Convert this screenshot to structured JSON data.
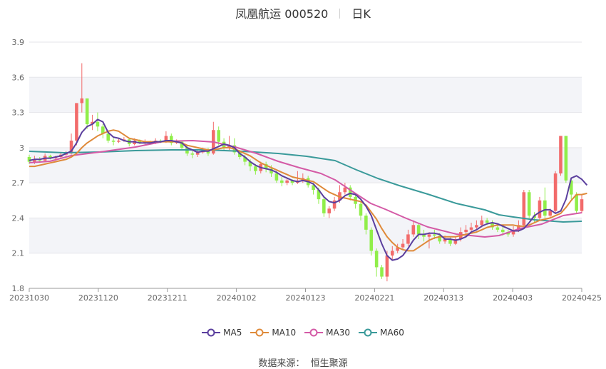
{
  "header": {
    "title": "凤凰航运 000520",
    "period": "日K"
  },
  "source": {
    "label": "数据来源：",
    "value": "恒生聚源"
  },
  "chart_data": {
    "type": "candlestick",
    "ylim": [
      1.8,
      3.9
    ],
    "yticks": [
      1.8,
      2.1,
      2.4,
      2.7,
      3,
      3.3,
      3.6,
      3.9
    ],
    "xticks": [
      "20231030",
      "20231120",
      "20231211",
      "20240102",
      "20240123",
      "20240221",
      "20240313",
      "20240403",
      "20240425"
    ],
    "up_color": "#f26b6b",
    "down_color": "#90ee4a",
    "grid_band_color": "#f3f4f8",
    "series": [
      {
        "name": "MA5",
        "color": "#5b3f9e"
      },
      {
        "name": "MA10",
        "color": "#df8a3a"
      },
      {
        "name": "MA30",
        "color": "#d45aa6"
      },
      {
        "name": "MA60",
        "color": "#3a9a9a"
      }
    ],
    "candles": [
      [
        2.92,
        2.88,
        2.94,
        2.86
      ],
      [
        2.88,
        2.9,
        2.93,
        2.86
      ],
      [
        2.9,
        2.89,
        2.92,
        2.87
      ],
      [
        2.89,
        2.93,
        2.95,
        2.88
      ],
      [
        2.93,
        2.91,
        2.94,
        2.9
      ],
      [
        2.91,
        2.92,
        2.93,
        2.89
      ],
      [
        2.92,
        2.94,
        2.96,
        2.91
      ],
      [
        2.94,
        2.95,
        2.97,
        2.93
      ],
      [
        2.95,
        3.06,
        3.12,
        2.94
      ],
      [
        3.06,
        3.38,
        3.38,
        3.02
      ],
      [
        3.38,
        3.42,
        3.72,
        3.3
      ],
      [
        3.42,
        3.2,
        3.3,
        3.16
      ],
      [
        3.2,
        3.22,
        3.28,
        3.15
      ],
      [
        3.22,
        3.18,
        3.3,
        3.14
      ],
      [
        3.18,
        3.12,
        3.2,
        3.08
      ],
      [
        3.12,
        3.06,
        3.14,
        3.04
      ],
      [
        3.06,
        3.05,
        3.08,
        3.02
      ],
      [
        3.05,
        3.06,
        3.08,
        3.04
      ],
      [
        3.06,
        3.07,
        3.09,
        3.05
      ],
      [
        3.07,
        3.03,
        3.08,
        3.01
      ],
      [
        3.03,
        3.06,
        3.08,
        3.02
      ],
      [
        3.06,
        3.04,
        3.07,
        3.03
      ],
      [
        3.04,
        3.05,
        3.07,
        3.02
      ],
      [
        3.05,
        3.04,
        3.06,
        3.03
      ],
      [
        3.04,
        3.06,
        3.08,
        3.03
      ],
      [
        3.06,
        3.05,
        3.07,
        3.04
      ],
      [
        3.05,
        3.1,
        3.14,
        3.04
      ],
      [
        3.1,
        3.04,
        3.12,
        3.02
      ],
      [
        3.04,
        3.05,
        3.07,
        3.03
      ],
      [
        3.05,
        3.0,
        3.06,
        2.98
      ],
      [
        3.0,
        2.95,
        3.02,
        2.93
      ],
      [
        2.95,
        2.94,
        2.97,
        2.91
      ],
      [
        2.94,
        2.96,
        2.98,
        2.92
      ],
      [
        2.96,
        2.98,
        3.0,
        2.95
      ],
      [
        2.98,
        2.95,
        3.0,
        2.93
      ],
      [
        2.95,
        3.15,
        3.22,
        2.94
      ],
      [
        3.15,
        3.05,
        3.18,
        3.02
      ],
      [
        3.05,
        3.0,
        3.08,
        2.98
      ],
      [
        3.0,
        3.02,
        3.1,
        2.98
      ],
      [
        3.02,
        2.96,
        3.08,
        2.94
      ],
      [
        2.96,
        2.92,
        2.98,
        2.9
      ],
      [
        2.92,
        2.88,
        2.94,
        2.85
      ],
      [
        2.88,
        2.84,
        2.9,
        2.8
      ],
      [
        2.84,
        2.8,
        2.86,
        2.77
      ],
      [
        2.8,
        2.86,
        2.88,
        2.78
      ],
      [
        2.86,
        2.82,
        2.88,
        2.79
      ],
      [
        2.82,
        2.78,
        2.85,
        2.75
      ],
      [
        2.78,
        2.72,
        2.8,
        2.7
      ],
      [
        2.72,
        2.7,
        2.75,
        2.67
      ],
      [
        2.7,
        2.72,
        2.74,
        2.68
      ],
      [
        2.72,
        2.7,
        2.73,
        2.68
      ],
      [
        2.7,
        2.72,
        2.8,
        2.69
      ],
      [
        2.72,
        2.74,
        2.78,
        2.7
      ],
      [
        2.74,
        2.68,
        2.76,
        2.66
      ],
      [
        2.68,
        2.64,
        2.7,
        2.6
      ],
      [
        2.64,
        2.56,
        2.66,
        2.52
      ],
      [
        2.56,
        2.44,
        2.58,
        2.41
      ],
      [
        2.44,
        2.48,
        2.5,
        2.4
      ],
      [
        2.48,
        2.55,
        2.58,
        2.46
      ],
      [
        2.55,
        2.62,
        2.68,
        2.53
      ],
      [
        2.62,
        2.66,
        2.7,
        2.6
      ],
      [
        2.66,
        2.58,
        2.68,
        2.55
      ],
      [
        2.58,
        2.52,
        2.6,
        2.48
      ],
      [
        2.52,
        2.42,
        2.54,
        2.38
      ],
      [
        2.42,
        2.3,
        2.44,
        2.26
      ],
      [
        2.3,
        2.12,
        2.32,
        2.08
      ],
      [
        2.12,
        1.98,
        2.14,
        1.9
      ],
      [
        1.98,
        1.9,
        2.0,
        1.88
      ],
      [
        1.9,
        2.08,
        2.12,
        1.86
      ],
      [
        2.08,
        2.12,
        2.16,
        2.04
      ],
      [
        2.12,
        2.15,
        2.18,
        2.1
      ],
      [
        2.15,
        2.18,
        2.22,
        2.13
      ],
      [
        2.18,
        2.26,
        2.3,
        2.16
      ],
      [
        2.26,
        2.34,
        2.38,
        2.24
      ],
      [
        2.34,
        2.26,
        2.36,
        2.22
      ],
      [
        2.26,
        2.24,
        2.3,
        2.2
      ],
      [
        2.24,
        2.26,
        2.28,
        2.14
      ],
      [
        2.26,
        2.25,
        2.3,
        2.22
      ],
      [
        2.25,
        2.2,
        2.27,
        2.18
      ],
      [
        2.2,
        2.22,
        2.25,
        2.18
      ],
      [
        2.22,
        2.18,
        2.24,
        2.16
      ],
      [
        2.18,
        2.22,
        2.24,
        2.17
      ],
      [
        2.22,
        2.28,
        2.32,
        2.2
      ],
      [
        2.28,
        2.3,
        2.34,
        2.26
      ],
      [
        2.3,
        2.32,
        2.36,
        2.28
      ],
      [
        2.32,
        2.34,
        2.38,
        2.3
      ],
      [
        2.34,
        2.38,
        2.42,
        2.32
      ],
      [
        2.38,
        2.36,
        2.4,
        2.34
      ],
      [
        2.36,
        2.32,
        2.38,
        2.3
      ],
      [
        2.32,
        2.3,
        2.35,
        2.28
      ],
      [
        2.3,
        2.28,
        2.33,
        2.25
      ],
      [
        2.28,
        2.26,
        2.3,
        2.24
      ],
      [
        2.26,
        2.3,
        2.33,
        2.24
      ],
      [
        2.3,
        2.34,
        2.38,
        2.28
      ],
      [
        2.34,
        2.62,
        2.64,
        2.32
      ],
      [
        2.62,
        2.42,
        2.64,
        2.4
      ],
      [
        2.42,
        2.4,
        2.45,
        2.36
      ],
      [
        2.4,
        2.55,
        2.58,
        2.38
      ],
      [
        2.55,
        2.42,
        2.66,
        2.4
      ],
      [
        2.42,
        2.46,
        2.48,
        2.4
      ],
      [
        2.46,
        2.78,
        2.8,
        2.44
      ],
      [
        2.78,
        3.1,
        3.1,
        2.76
      ],
      [
        3.1,
        2.72,
        3.1,
        2.7
      ],
      [
        2.72,
        2.6,
        2.74,
        2.56
      ],
      [
        2.6,
        2.46,
        2.62,
        2.44
      ],
      [
        2.46,
        2.56,
        2.6,
        2.44
      ]
    ],
    "ma5": [
      2.89,
      2.9,
      2.9,
      2.91,
      2.91,
      2.92,
      2.93,
      2.95,
      2.97,
      3.04,
      3.13,
      3.18,
      3.2,
      3.24,
      3.22,
      3.13,
      3.09,
      3.08,
      3.06,
      3.05,
      3.05,
      3.04,
      3.04,
      3.04,
      3.05,
      3.05,
      3.06,
      3.06,
      3.05,
      3.04,
      3.0,
      2.98,
      2.96,
      2.97,
      2.97,
      2.99,
      3.01,
      3.03,
      3.02,
      3.0,
      2.95,
      2.92,
      2.88,
      2.85,
      2.83,
      2.82,
      2.81,
      2.79,
      2.76,
      2.74,
      2.72,
      2.71,
      2.72,
      2.71,
      2.69,
      2.64,
      2.58,
      2.54,
      2.53,
      2.55,
      2.59,
      2.61,
      2.6,
      2.56,
      2.5,
      2.42,
      2.3,
      2.18,
      2.08,
      2.04,
      2.05,
      2.08,
      2.14,
      2.21,
      2.26,
      2.26,
      2.27,
      2.27,
      2.26,
      2.22,
      2.22,
      2.21,
      2.22,
      2.24,
      2.28,
      2.3,
      2.33,
      2.35,
      2.36,
      2.35,
      2.33,
      2.31,
      2.29,
      2.29,
      2.31,
      2.36,
      2.42,
      2.45,
      2.47,
      2.47,
      2.44,
      2.46,
      2.56,
      2.74,
      2.76,
      2.73,
      2.68
    ],
    "ma10": [
      2.84,
      2.84,
      2.85,
      2.86,
      2.87,
      2.88,
      2.89,
      2.9,
      2.92,
      2.95,
      3.0,
      3.04,
      3.07,
      3.1,
      3.12,
      3.14,
      3.15,
      3.14,
      3.11,
      3.08,
      3.07,
      3.06,
      3.05,
      3.05,
      3.05,
      3.05,
      3.05,
      3.05,
      3.05,
      3.04,
      3.02,
      3.01,
      3.0,
      2.99,
      2.98,
      2.98,
      2.99,
      3.0,
      3.0,
      2.99,
      2.97,
      2.95,
      2.93,
      2.9,
      2.87,
      2.85,
      2.83,
      2.81,
      2.79,
      2.77,
      2.75,
      2.74,
      2.73,
      2.72,
      2.71,
      2.68,
      2.65,
      2.62,
      2.6,
      2.58,
      2.57,
      2.56,
      2.55,
      2.54,
      2.51,
      2.45,
      2.39,
      2.31,
      2.24,
      2.19,
      2.15,
      2.13,
      2.12,
      2.12,
      2.15,
      2.18,
      2.21,
      2.23,
      2.24,
      2.24,
      2.24,
      2.24,
      2.25,
      2.26,
      2.27,
      2.28,
      2.3,
      2.32,
      2.33,
      2.34,
      2.34,
      2.34,
      2.34,
      2.33,
      2.33,
      2.34,
      2.36,
      2.38,
      2.39,
      2.4,
      2.42,
      2.44,
      2.49,
      2.55,
      2.6,
      2.6,
      2.61
    ]
  }
}
